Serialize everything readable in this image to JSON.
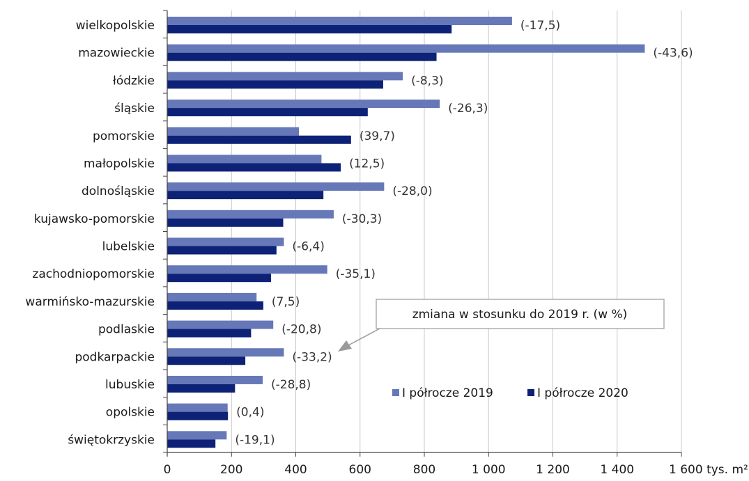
{
  "chart_data": {
    "type": "bar",
    "orientation": "horizontal",
    "categories": [
      "wielkopolskie",
      "mazowieckie",
      "łódzkie",
      "śląskie",
      "pomorskie",
      "małopolskie",
      "dolnośląskie",
      "kujawsko-pomorskie",
      "lubelskie",
      "zachodniopomorskie",
      "warmińsko-mazurskie",
      "podlaskie",
      "podkarpackie",
      "lubuskie",
      "opolskie",
      "świętokrzyskie"
    ],
    "series": [
      {
        "name": "I półrocze 2019",
        "color": "#6678b8",
        "values": [
          1073,
          1486,
          733,
          848,
          410,
          480,
          675,
          518,
          363,
          498,
          278,
          330,
          363,
          297,
          188,
          185
        ]
      },
      {
        "name": "I półrocze 2020",
        "color": "#0d2277",
        "values": [
          885,
          838,
          672,
          624,
          572,
          540,
          486,
          361,
          340,
          323,
          299,
          261,
          243,
          211,
          189,
          150
        ]
      }
    ],
    "change_labels": [
      "(-17,5)",
      "(-43,6)",
      "(-8,3)",
      "(-26,3)",
      "(39,7)",
      "(12,5)",
      "(-28,0)",
      "(-30,3)",
      "(-6,4)",
      "(-35,1)",
      "(7,5)",
      "(-20,8)",
      "(-33,2)",
      "(-28,8)",
      "(0,4)",
      "(-19,1)"
    ],
    "x_ticks": [
      0,
      200,
      400,
      600,
      800,
      1000,
      1200,
      1400,
      1600
    ],
    "x_tick_labels": [
      "0",
      "200",
      "400",
      "600",
      "800",
      "1 000",
      "1 200",
      "1 400",
      "1 600"
    ],
    "x_unit": "tys. m²",
    "xlim": [
      0,
      1600
    ],
    "grid": "vertical",
    "legend_position": "bottom-right",
    "annotation": "zmiana w stosunku do 2019 r. (w %)"
  }
}
